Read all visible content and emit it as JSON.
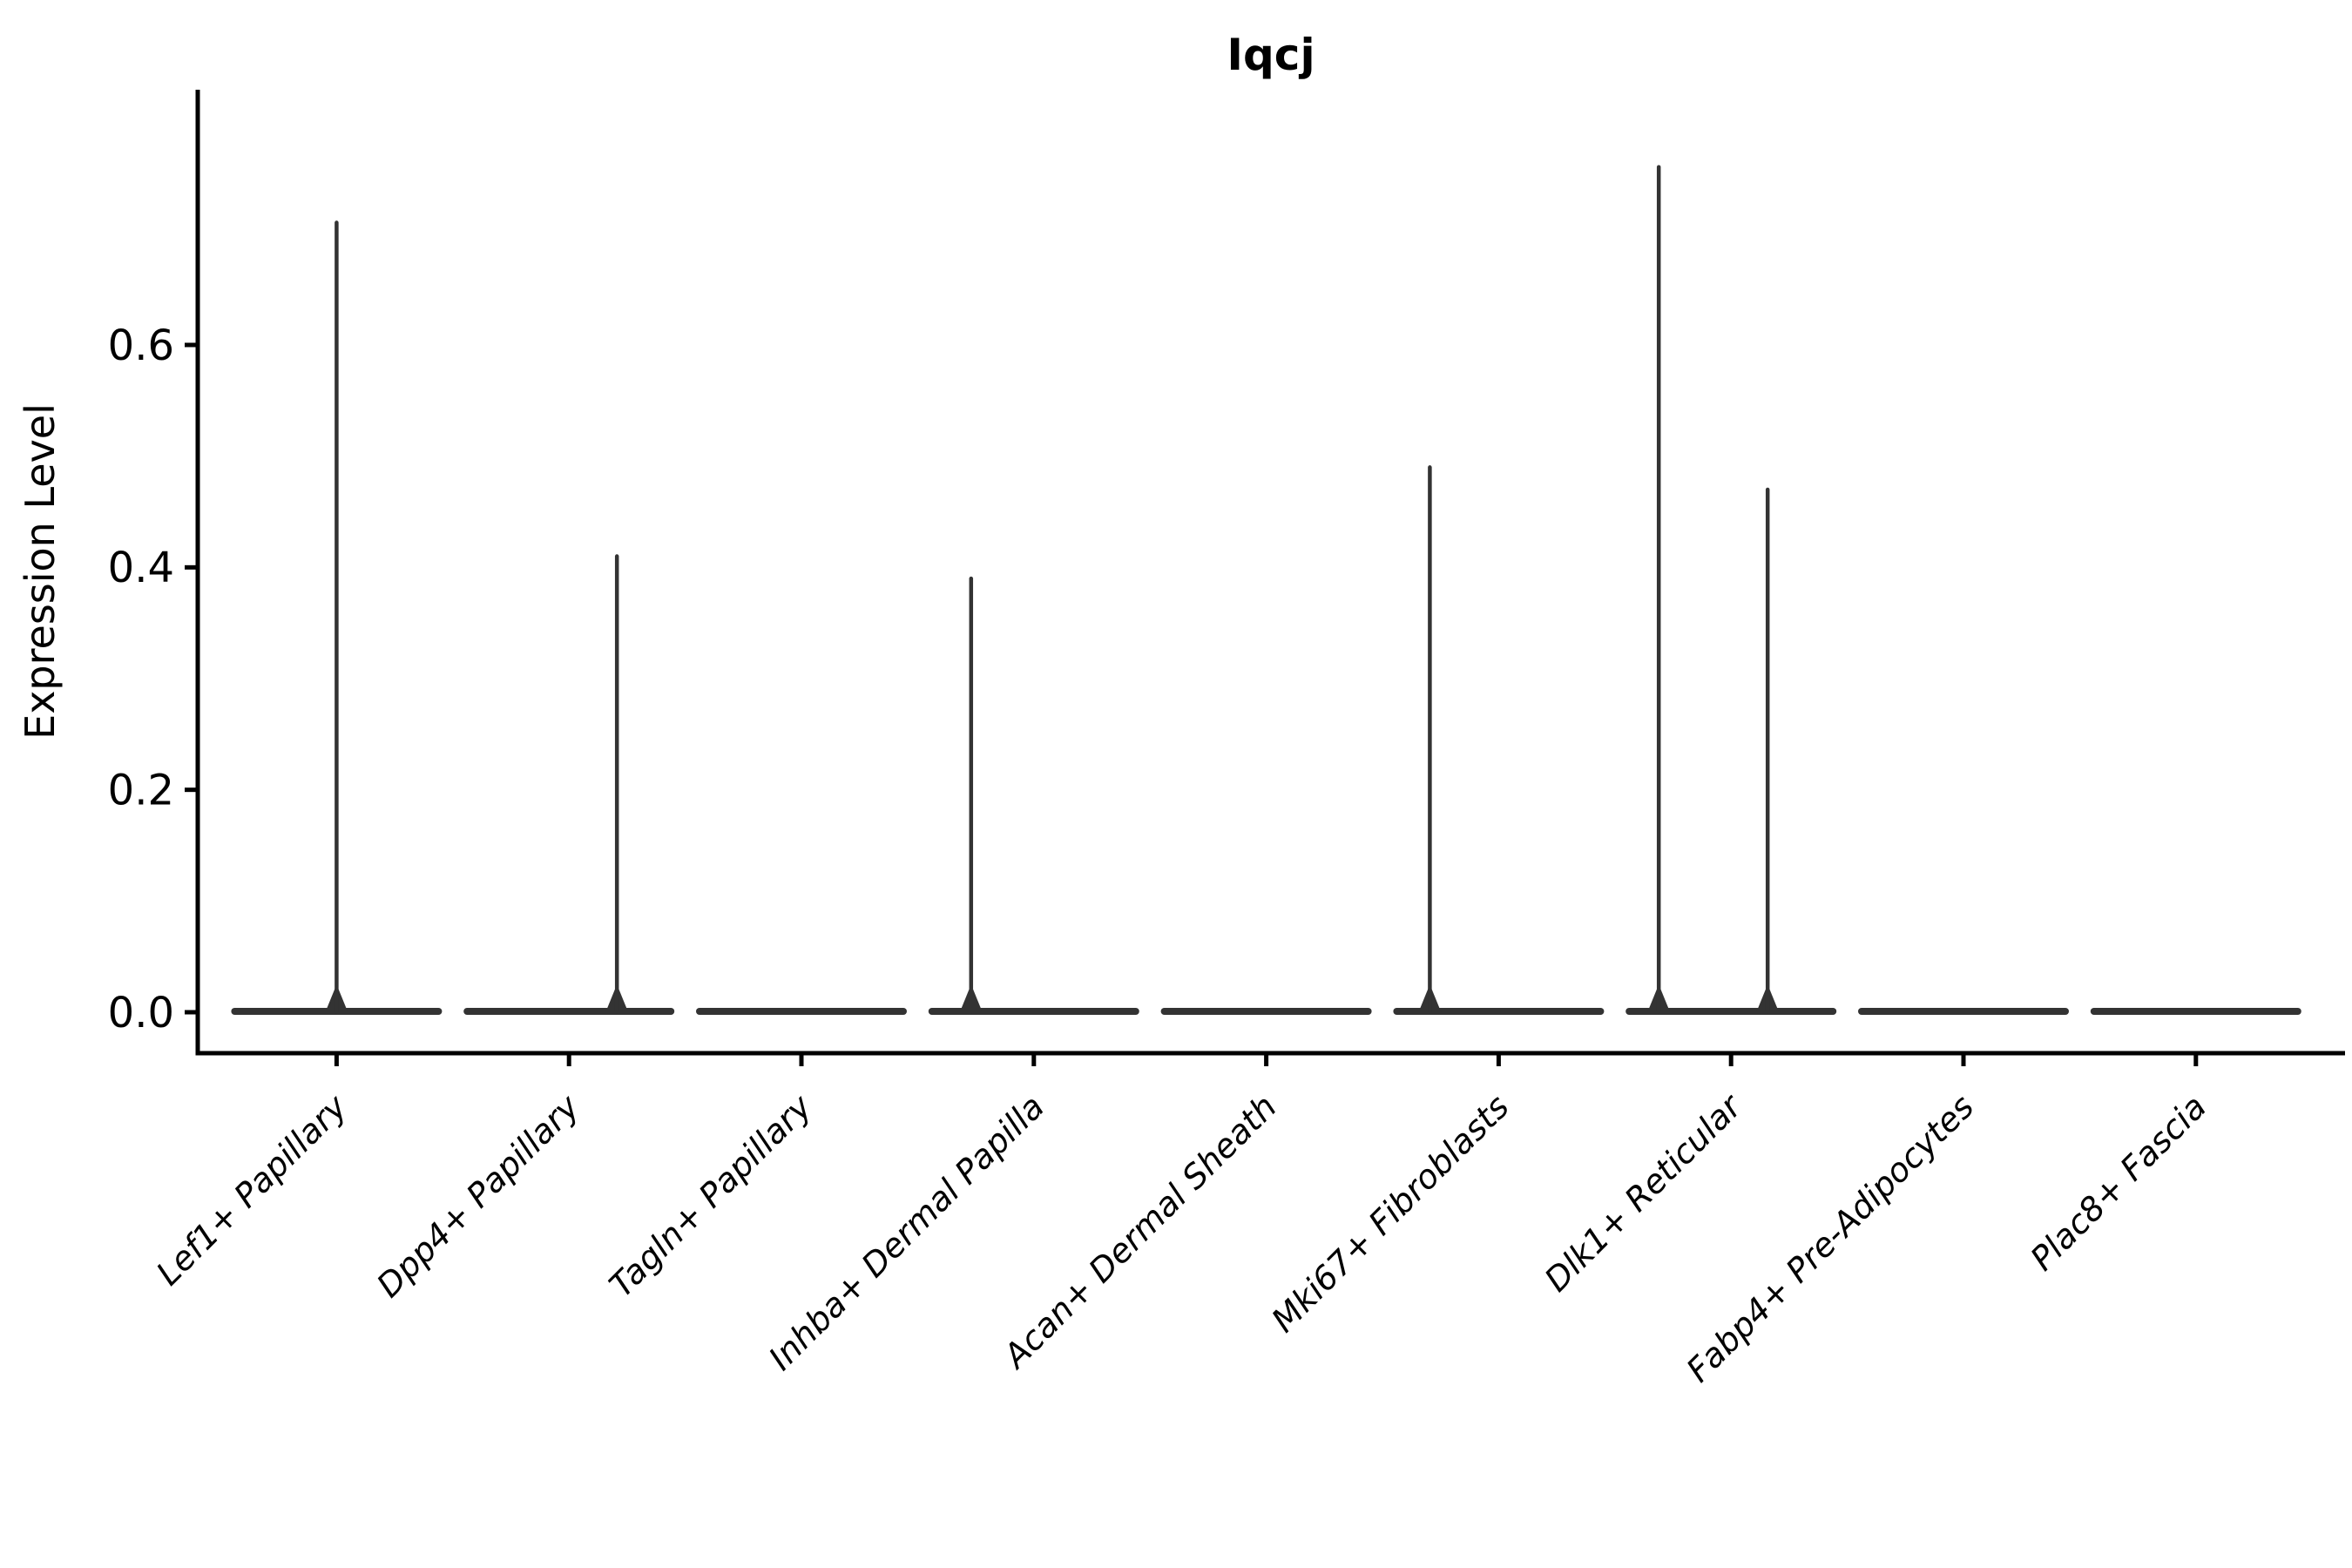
{
  "chart_data": {
    "type": "violin",
    "title": "Iqcj",
    "xlabel": "",
    "ylabel": "Expression Level",
    "yticks": [
      0.0,
      0.2,
      0.4,
      0.6
    ],
    "ytick_labels": [
      "0.0",
      "0.2",
      "0.4",
      "0.6"
    ],
    "ylim": [
      -0.04,
      0.83
    ],
    "grid": false,
    "legend": null,
    "categories": [
      "Lef1+ Papillary",
      "Dpp4+ Papillary",
      "Tagln+ Papillary",
      "Inhba+ Dermal Papilla",
      "Acan+ Dermal Sheath",
      "Mki67+ Fibroblasts",
      "Dlk1+ Reticular",
      "Fabp4+ Pre-Adipocytes",
      "Plac8+ Fascia"
    ],
    "violins": [
      {
        "category": "Lef1+ Papillary",
        "baseline_value": 0.0,
        "peaks": [
          {
            "value": 0.71,
            "x_offset": 0
          }
        ]
      },
      {
        "category": "Dpp4+ Papillary",
        "baseline_value": 0.0,
        "peaks": [
          {
            "value": 0.41,
            "x_offset": 55
          }
        ]
      },
      {
        "category": "Tagln+ Papillary",
        "baseline_value": 0.0,
        "peaks": []
      },
      {
        "category": "Inhba+ Dermal Papilla",
        "baseline_value": 0.0,
        "peaks": [
          {
            "value": 0.39,
            "x_offset": -72
          }
        ]
      },
      {
        "category": "Acan+ Dermal Sheath",
        "baseline_value": 0.0,
        "peaks": []
      },
      {
        "category": "Mki67+ Fibroblasts",
        "baseline_value": 0.0,
        "peaks": [
          {
            "value": 0.49,
            "x_offset": -79
          }
        ]
      },
      {
        "category": "Dlk1+ Reticular",
        "baseline_value": 0.0,
        "peaks": [
          {
            "value": 0.76,
            "x_offset": -83
          },
          {
            "value": 0.47,
            "x_offset": 42
          }
        ]
      },
      {
        "category": "Fabp4+ Pre-Adipocytes",
        "baseline_value": 0.0,
        "peaks": []
      },
      {
        "category": "Plac8+ Fascia",
        "baseline_value": 0.0,
        "peaks": []
      }
    ],
    "colors": {
      "violin": "#333333",
      "axis": "#000000",
      "text": "#000000"
    }
  }
}
